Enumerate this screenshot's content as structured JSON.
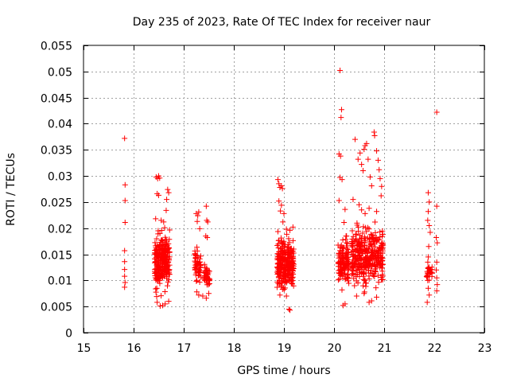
{
  "chart_data": {
    "type": "scatter",
    "title": "Day 235 of 2023, Rate Of TEC Index for receiver naur",
    "xlabel": "GPS time / hours",
    "ylabel": "ROTI / TECUs",
    "xlim": [
      15,
      23
    ],
    "ylim": [
      0,
      0.055
    ],
    "xticks": [
      "15",
      "16",
      "17",
      "18",
      "19",
      "20",
      "21",
      "22",
      "23"
    ],
    "yticks": [
      "0",
      "0.005",
      "0.01",
      "0.015",
      "0.02",
      "0.025",
      "0.03",
      "0.035",
      "0.04",
      "0.045",
      "0.05",
      "0.055"
    ],
    "grid": true,
    "marker": "+",
    "color": "#ff0000",
    "series": [
      {
        "name": "ROTI",
        "points": [
          [
            15.82,
            0.0372
          ],
          [
            15.83,
            0.0283
          ],
          [
            15.83,
            0.0253
          ],
          [
            15.83,
            0.0211
          ],
          [
            15.82,
            0.0157
          ],
          [
            15.82,
            0.0136
          ],
          [
            15.82,
            0.0121
          ],
          [
            15.82,
            0.0108
          ],
          [
            15.83,
            0.0096
          ],
          [
            15.82,
            0.0087
          ],
          [
            16.45,
            0.0298
          ],
          [
            16.48,
            0.0295
          ],
          [
            16.5,
            0.03
          ],
          [
            16.52,
            0.0296
          ],
          [
            16.47,
            0.0266
          ],
          [
            16.5,
            0.0263
          ],
          [
            16.44,
            0.0218
          ],
          [
            16.55,
            0.0215
          ],
          [
            16.6,
            0.0212
          ],
          [
            16.65,
            0.0234
          ],
          [
            16.68,
            0.0274
          ],
          [
            16.7,
            0.0268
          ],
          [
            16.66,
            0.0255
          ],
          [
            16.62,
            0.0201
          ],
          [
            16.58,
            0.0052
          ],
          [
            16.63,
            0.0055
          ],
          [
            16.7,
            0.006
          ],
          [
            16.47,
            0.0058
          ],
          [
            16.53,
            0.0051
          ],
          [
            17.25,
            0.0228
          ],
          [
            17.28,
            0.0224
          ],
          [
            17.3,
            0.0231
          ],
          [
            17.27,
            0.0213
          ],
          [
            17.32,
            0.0199
          ],
          [
            17.45,
            0.0242
          ],
          [
            17.46,
            0.0215
          ],
          [
            17.48,
            0.0212
          ],
          [
            17.44,
            0.0185
          ],
          [
            17.47,
            0.0182
          ],
          [
            17.26,
            0.0078
          ],
          [
            17.3,
            0.0072
          ],
          [
            17.38,
            0.007
          ],
          [
            17.45,
            0.0066
          ],
          [
            17.5,
            0.0075
          ],
          [
            18.88,
            0.0293
          ],
          [
            18.9,
            0.0285
          ],
          [
            18.92,
            0.0278
          ],
          [
            18.95,
            0.0281
          ],
          [
            18.97,
            0.0276
          ],
          [
            18.9,
            0.0252
          ],
          [
            18.95,
            0.0244
          ],
          [
            18.93,
            0.0233
          ],
          [
            19.0,
            0.0228
          ],
          [
            18.98,
            0.0212
          ],
          [
            19.05,
            0.0198
          ],
          [
            19.12,
            0.0196
          ],
          [
            19.18,
            0.0202
          ],
          [
            19.1,
            0.0045
          ],
          [
            19.12,
            0.0043
          ],
          [
            18.92,
            0.0072
          ],
          [
            19.05,
            0.007
          ],
          [
            20.12,
            0.0502
          ],
          [
            20.15,
            0.0427
          ],
          [
            20.14,
            0.0412
          ],
          [
            20.1,
            0.0342
          ],
          [
            20.13,
            0.0338
          ],
          [
            20.12,
            0.0297
          ],
          [
            20.16,
            0.0293
          ],
          [
            20.1,
            0.0253
          ],
          [
            20.22,
            0.0236
          ],
          [
            20.2,
            0.0211
          ],
          [
            20.25,
            0.0185
          ],
          [
            20.18,
            0.0052
          ],
          [
            20.22,
            0.0055
          ],
          [
            20.38,
            0.0255
          ],
          [
            20.42,
            0.037
          ],
          [
            20.48,
            0.0332
          ],
          [
            20.52,
            0.0344
          ],
          [
            20.55,
            0.0322
          ],
          [
            20.58,
            0.031
          ],
          [
            20.62,
            0.0358
          ],
          [
            20.65,
            0.0362
          ],
          [
            20.6,
            0.0351
          ],
          [
            20.68,
            0.0332
          ],
          [
            20.72,
            0.0298
          ],
          [
            20.75,
            0.0281
          ],
          [
            20.8,
            0.0384
          ],
          [
            20.81,
            0.0377
          ],
          [
            20.85,
            0.0348
          ],
          [
            20.88,
            0.033
          ],
          [
            20.9,
            0.0312
          ],
          [
            20.92,
            0.0295
          ],
          [
            20.95,
            0.028
          ],
          [
            20.94,
            0.0262
          ],
          [
            20.5,
            0.0245
          ],
          [
            20.55,
            0.0235
          ],
          [
            20.62,
            0.0228
          ],
          [
            20.7,
            0.0238
          ],
          [
            20.85,
            0.0232
          ],
          [
            20.45,
            0.007
          ],
          [
            20.6,
            0.0075
          ],
          [
            20.7,
            0.0058
          ],
          [
            20.75,
            0.0061
          ],
          [
            20.85,
            0.0068
          ],
          [
            21.88,
            0.0268
          ],
          [
            21.9,
            0.025
          ],
          [
            21.88,
            0.0232
          ],
          [
            21.87,
            0.0215
          ],
          [
            21.9,
            0.0205
          ],
          [
            21.92,
            0.0192
          ],
          [
            21.89,
            0.0165
          ],
          [
            21.88,
            0.0145
          ],
          [
            21.87,
            0.01
          ],
          [
            21.88,
            0.0085
          ],
          [
            21.86,
            0.0058
          ],
          [
            21.9,
            0.0072
          ],
          [
            22.05,
            0.0422
          ],
          [
            22.05,
            0.0242
          ],
          [
            22.04,
            0.0182
          ],
          [
            22.06,
            0.0172
          ],
          [
            22.05,
            0.0135
          ],
          [
            22.04,
            0.012
          ],
          [
            22.05,
            0.0105
          ],
          [
            22.06,
            0.0092
          ],
          [
            22.05,
            0.008
          ]
        ],
        "clusters": [
          {
            "x_range": [
              16.42,
              16.72
            ],
            "y_range": [
              0.006,
              0.021
            ],
            "count": 260
          },
          {
            "x_range": [
              17.22,
              17.34
            ],
            "y_range": [
              0.008,
              0.018
            ],
            "count": 55
          },
          {
            "x_range": [
              17.4,
              17.52
            ],
            "y_range": [
              0.008,
              0.014
            ],
            "count": 45
          },
          {
            "x_range": [
              18.86,
              19.2
            ],
            "y_range": [
              0.007,
              0.02
            ],
            "count": 280
          },
          {
            "x_range": [
              20.08,
              20.3
            ],
            "y_range": [
              0.007,
              0.02
            ],
            "count": 120
          },
          {
            "x_range": [
              20.35,
              20.98
            ],
            "y_range": [
              0.007,
              0.022
            ],
            "count": 360
          },
          {
            "x_range": [
              21.84,
              21.96
            ],
            "y_range": [
              0.009,
              0.014
            ],
            "count": 25
          }
        ]
      }
    ]
  }
}
